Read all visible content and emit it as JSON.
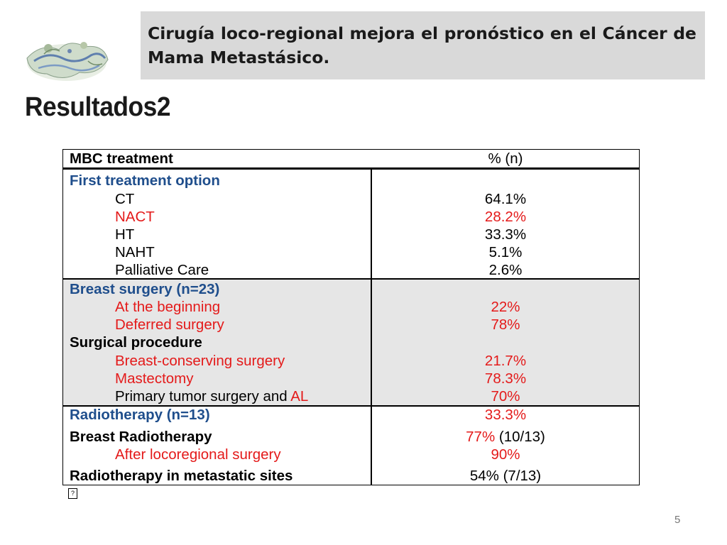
{
  "slide": {
    "title": "Cirugía loco-regional mejora el pronóstico en el Cáncer de Mama Metastásico.",
    "heading": "Resultados2",
    "page_number": "5",
    "footnote_glyph": "?"
  },
  "table": {
    "header": {
      "col1": "MBC treatment",
      "col2": "% (n)"
    },
    "rows": [
      {
        "label": "First treatment option",
        "value": "",
        "indent": 0,
        "style": "blue"
      },
      {
        "label": "CT",
        "value": "64.1%",
        "indent": 1,
        "style": "black"
      },
      {
        "label": "NACT",
        "value": "28.2%",
        "indent": 1,
        "style": "red"
      },
      {
        "label": "HT",
        "value": "33.3%",
        "indent": 1,
        "style": "black"
      },
      {
        "label": "NAHT",
        "value": "5.1%",
        "indent": 1,
        "style": "black"
      },
      {
        "label": "Palliative Care",
        "value": "2.6%",
        "indent": 1,
        "style": "black"
      },
      {
        "label": "Breast surgery (n=23)",
        "value": "",
        "indent": 0,
        "style": "blue"
      },
      {
        "label": "At the beginning",
        "value": "22%",
        "indent": 1,
        "style": "red"
      },
      {
        "label": "Deferred surgery",
        "value": "78%",
        "indent": 1,
        "style": "red"
      },
      {
        "label": "Surgical procedure",
        "value": "",
        "indent": 0,
        "style": "bold"
      },
      {
        "label": "Breast-conserving surgery",
        "value": "21.7%",
        "indent": 1,
        "style": "red"
      },
      {
        "label": "Mastectomy",
        "value": "78.3%",
        "indent": 1,
        "style": "red"
      },
      {
        "label_part1": "Primary tumor surgery and ",
        "label_part2": "AL",
        "value": "70%",
        "indent": 1,
        "style": "mixed"
      },
      {
        "label": "Radiotherapy (n=13)",
        "value": "33.3%",
        "indent": 0,
        "style": "blue",
        "value_style": "red"
      },
      {
        "label": "Breast Radiotherapy",
        "value_part1": "77%",
        "value_part2": " (10/13)",
        "indent": 0,
        "style": "bold"
      },
      {
        "label": "After locoregional surgery",
        "value": "90%",
        "indent": 1,
        "style": "red"
      },
      {
        "label": "Radiotherapy in metastatic sites",
        "value": "54% (7/13)",
        "indent": 0,
        "style": "bold",
        "value_style": "black"
      }
    ]
  },
  "colors": {
    "title_box_bg": "#d9d9d9",
    "section_blue": "#1f4e8c",
    "highlight_red": "#e41a1a",
    "shaded_band": "#e6e6e6"
  }
}
